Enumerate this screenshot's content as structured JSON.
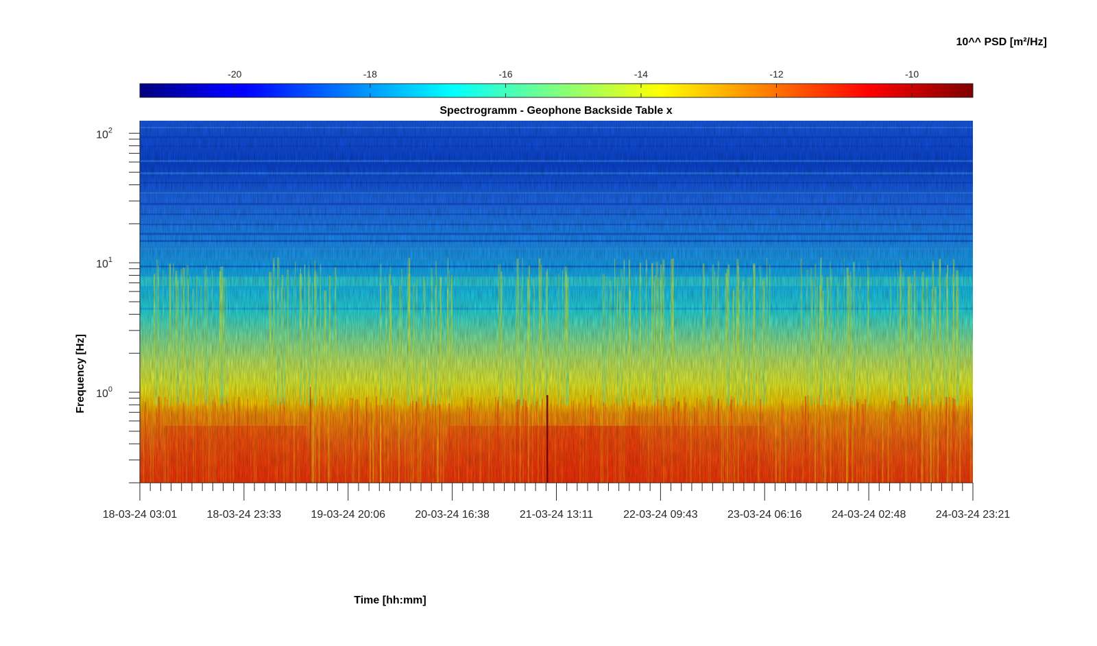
{
  "colorbar": {
    "label": "10^^ PSD [m²/Hz]",
    "range": [
      -21.4,
      -9.1
    ],
    "ticks": [
      "-20",
      "-18",
      "-16",
      "-14",
      "-12",
      "-10"
    ],
    "colormap": "jet"
  },
  "chart_data": {
    "type": "heatmap",
    "title": "Spectrogramm - Geophone Backside Table x",
    "xlabel": "Time [hh:mm]",
    "ylabel": "Frequency [Hz]",
    "y_scale": "log",
    "ylim": [
      0.2,
      125
    ],
    "y_ticks": [
      {
        "base": "10",
        "exp": "2"
      },
      {
        "base": "10",
        "exp": "1"
      },
      {
        "base": "10",
        "exp": "0"
      }
    ],
    "xlim": [
      "18-03-24 03:01",
      "24-03-24 23:21"
    ],
    "x_tick_labels": [
      "18-03-24 03:01",
      "18-03-24 23:33",
      "19-03-24 20:06",
      "20-03-24 16:38",
      "21-03-24 13:11",
      "22-03-24 09:43",
      "23-03-24 06:16",
      "24-03-24 02:48",
      "24-03-24 23:21"
    ],
    "value_range": [
      -21.4,
      -9.1
    ],
    "approximate_level_by_band": [
      {
        "band_hz": [
          20,
          125
        ],
        "log10_psd": -20.3
      },
      {
        "band_hz": [
          8,
          20
        ],
        "log10_psd": -18.3
      },
      {
        "band_hz": [
          4,
          8
        ],
        "log10_psd": -17.2
      },
      {
        "band_hz": [
          1,
          4
        ],
        "log10_psd": -15.5
      },
      {
        "band_hz": [
          0.7,
          1
        ],
        "log10_psd": -14.2
      },
      {
        "band_hz": [
          0.2,
          0.7
        ],
        "log10_psd": -11.5
      }
    ],
    "colors": {
      "axis": "#262626",
      "frame": "#000000"
    }
  }
}
